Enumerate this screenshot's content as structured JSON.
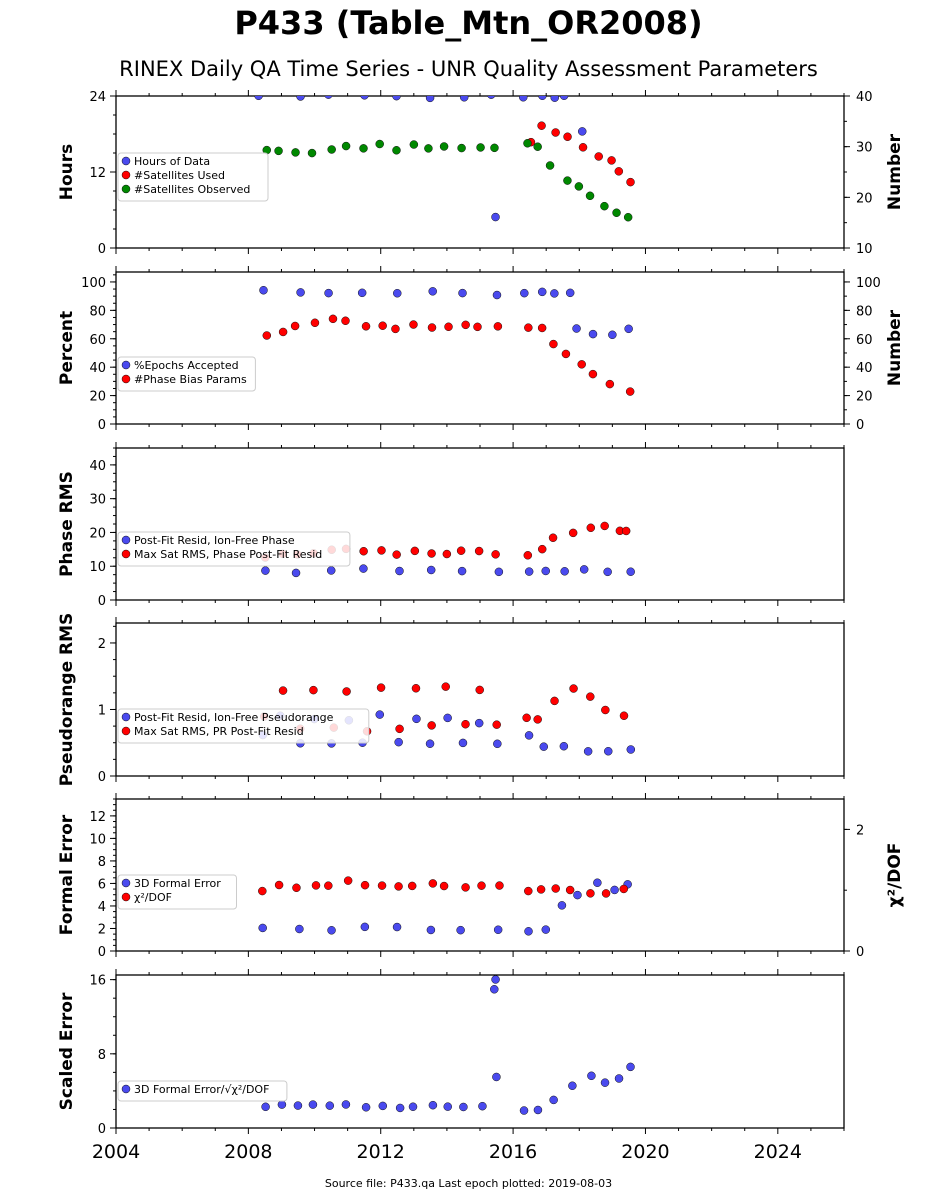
{
  "title": "P433 (Table_Mtn_OR2008)",
  "subtitle": "RINEX Daily QA Time Series - UNR Quality Assessment Parameters",
  "source_note": "Source file: P433.qa Last epoch plotted: 2019-08-03",
  "colors": {
    "blue": "#4a4aee",
    "red": "#ff0000",
    "green": "#008800",
    "edge": "#111111"
  },
  "chart_data": [
    {
      "type": "scatter",
      "ylabel": "Hours",
      "ylabel_right": "Number",
      "x_ticks": [
        "2004",
        "2008",
        "2012",
        "2016",
        "2020",
        "2024"
      ],
      "xlim": [
        2004,
        2026
      ],
      "ylim": [
        0,
        24
      ],
      "yticks": [
        "0",
        "12",
        "24"
      ],
      "ylim_right": [
        10,
        40
      ],
      "yticks_right": [
        "10",
        "20",
        "30",
        "40"
      ],
      "legend": [
        "Hours of Data",
        "#Satellites Used",
        "#Satellites Observed"
      ],
      "legend_loc": "lower-left",
      "series": [
        {
          "name": "Hours of Data",
          "color": "blue",
          "axis": "left",
          "x": [
            2008.4,
            2009.5,
            2010.5,
            2011.5,
            2012.5,
            2013.5,
            2014.5,
            2015.4,
            2015.5,
            2016.3,
            2016.8,
            2017.2,
            2017.6,
            2018.0
          ],
          "y": [
            24,
            24,
            24,
            24,
            24,
            24,
            24,
            24,
            5.2,
            24,
            24,
            24,
            24,
            18.5
          ]
        },
        {
          "name": "#Satellites Used",
          "color": "red",
          "axis": "right",
          "x": [
            2016.5,
            2016.9,
            2017.3,
            2017.7,
            2018.1,
            2018.5,
            2018.9,
            2019.2,
            2019.5
          ],
          "y": [
            31,
            34,
            33,
            32,
            30,
            28,
            27,
            25,
            23
          ]
        },
        {
          "name": "#Satellites Observed",
          "color": "green",
          "axis": "right",
          "x": [
            2008.5,
            2009.0,
            2009.5,
            2010.0,
            2010.5,
            2011.0,
            2011.5,
            2012.0,
            2012.5,
            2013.0,
            2013.5,
            2014.0,
            2014.5,
            2015.0,
            2015.5,
            2016.4,
            2016.8,
            2017.2,
            2017.6,
            2018.0,
            2018.4,
            2018.8,
            2019.2,
            2019.5
          ],
          "y": [
            29.5,
            29,
            28.8,
            28.5,
            29.5,
            30.5,
            30,
            30.5,
            29.5,
            30.5,
            30,
            30,
            29.5,
            30,
            30,
            30.5,
            30,
            26,
            23,
            22,
            20,
            18.5,
            17,
            16
          ]
        }
      ]
    },
    {
      "type": "scatter",
      "ylabel": "Percent",
      "ylabel_right": "Number",
      "xlim": [
        2004,
        2026
      ],
      "ylim": [
        0,
        107
      ],
      "yticks": [
        "0",
        "20",
        "40",
        "60",
        "80",
        "100"
      ],
      "ylim_right": [
        0,
        107
      ],
      "yticks_right": [
        "0",
        "20",
        "40",
        "60",
        "80",
        "100"
      ],
      "legend": [
        "%Epochs Accepted",
        "#Phase Bias Params"
      ],
      "legend_loc": "lower-left",
      "series": [
        {
          "name": "%Epochs Accepted",
          "color": "blue",
          "axis": "left",
          "x": [
            2008.5,
            2009.5,
            2010.5,
            2011.5,
            2012.5,
            2013.5,
            2014.5,
            2015.5,
            2016.3,
            2016.8,
            2017.3,
            2017.7,
            2018.0,
            2018.5,
            2019.0,
            2019.5
          ],
          "y": [
            93,
            92,
            91,
            92,
            92,
            93,
            92,
            92,
            93,
            92,
            92,
            93,
            68,
            64,
            64,
            66
          ]
        },
        {
          "name": "#Phase Bias Params",
          "color": "red",
          "axis": "right",
          "x": [
            2008.5,
            2009.0,
            2009.5,
            2010.0,
            2010.5,
            2011.0,
            2011.5,
            2012.0,
            2012.5,
            2013.0,
            2013.5,
            2014.0,
            2014.5,
            2015.0,
            2015.5,
            2016.4,
            2016.8,
            2017.2,
            2017.6,
            2018.0,
            2018.5,
            2019.0,
            2019.5
          ],
          "y": [
            63,
            66,
            68,
            70,
            74,
            72,
            70,
            68,
            66,
            70,
            69,
            68,
            70,
            69,
            70,
            67,
            68,
            55,
            48,
            42,
            35,
            28,
            24
          ]
        }
      ]
    },
    {
      "type": "scatter",
      "ylabel": "Phase RMS",
      "xlim": [
        2004,
        2026
      ],
      "ylim": [
        0,
        45
      ],
      "yticks": [
        "0",
        "10",
        "20",
        "30",
        "40"
      ],
      "legend": [
        "Post-Fit Resid, Ion-Free Phase",
        "Max Sat RMS, Phase Post-Fit Resid"
      ],
      "legend_loc": "lower-left",
      "series": [
        {
          "name": "Post-Fit Resid, Ion-Free Phase",
          "color": "blue",
          "axis": "left",
          "x": [
            2008.5,
            2009.5,
            2010.5,
            2011.5,
            2012.5,
            2013.5,
            2014.5,
            2015.5,
            2016.4,
            2017.0,
            2017.6,
            2018.2,
            2018.8,
            2019.5
          ],
          "y": [
            8.5,
            8.5,
            8.8,
            8.8,
            8.6,
            8.5,
            8.5,
            8.6,
            8.7,
            8.6,
            8.7,
            8.5,
            8.6,
            8.8
          ]
        },
        {
          "name": "Max Sat RMS, Phase Post-Fit Resid",
          "color": "red",
          "axis": "left",
          "x": [
            2008.5,
            2009.0,
            2009.5,
            2010.0,
            2010.5,
            2011.0,
            2011.5,
            2012.0,
            2012.5,
            2013.0,
            2013.5,
            2014.0,
            2014.5,
            2015.0,
            2015.5,
            2016.4,
            2016.8,
            2017.2,
            2017.8,
            2018.3,
            2018.8,
            2019.2,
            2019.5
          ],
          "y": [
            13,
            14,
            13.5,
            14,
            14.5,
            15,
            15,
            14.5,
            14,
            14.5,
            14,
            14,
            14,
            14,
            14,
            13.5,
            15,
            18,
            20,
            21,
            22,
            20,
            21
          ]
        }
      ]
    },
    {
      "type": "scatter",
      "ylabel": "Pseudorange RMS",
      "xlim": [
        2004,
        2026
      ],
      "ylim": [
        0,
        2.3
      ],
      "yticks": [
        "0",
        "1",
        "2"
      ],
      "legend": [
        "Post-Fit Resid, Ion-Free Pseudorange",
        "Max Sat RMS, PR Post-Fit Resid"
      ],
      "legend_loc": "lower-left",
      "series": [
        {
          "name": "Post-Fit Resid, Ion-Free Pseudorange",
          "color": "blue",
          "axis": "left",
          "x": [
            2008.5,
            2009.0,
            2009.5,
            2010.0,
            2010.5,
            2011.0,
            2011.5,
            2012.0,
            2012.5,
            2013.0,
            2013.5,
            2014.0,
            2014.5,
            2015.0,
            2015.5,
            2016.4,
            2017.0,
            2017.6,
            2018.2,
            2018.8,
            2019.5
          ],
          "y": [
            0.6,
            0.9,
            0.5,
            0.85,
            0.5,
            0.85,
            0.5,
            0.9,
            0.5,
            0.85,
            0.5,
            0.9,
            0.5,
            0.8,
            0.5,
            0.6,
            0.45,
            0.42,
            0.4,
            0.4,
            0.42
          ]
        },
        {
          "name": "Max Sat RMS, PR Post-Fit Resid",
          "color": "red",
          "axis": "left",
          "x": [
            2008.5,
            2009.0,
            2009.5,
            2010.0,
            2010.5,
            2011.0,
            2011.5,
            2012.0,
            2012.5,
            2013.0,
            2013.5,
            2014.0,
            2014.5,
            2015.0,
            2015.5,
            2016.4,
            2016.8,
            2017.3,
            2017.8,
            2018.3,
            2018.8,
            2019.3
          ],
          "y": [
            0.9,
            1.3,
            0.7,
            1.3,
            0.7,
            1.3,
            0.7,
            1.35,
            0.7,
            1.3,
            0.75,
            1.35,
            0.75,
            1.3,
            0.8,
            0.9,
            0.85,
            1.1,
            1.3,
            1.2,
            1.0,
            0.9
          ]
        }
      ]
    },
    {
      "type": "scatter",
      "ylabel": "Formal Error",
      "ylabel_right": "χ²/DOF",
      "xlim": [
        2004,
        2026
      ],
      "ylim": [
        0,
        13.5
      ],
      "yticks": [
        "0",
        "2",
        "4",
        "6",
        "8",
        "10",
        "12"
      ],
      "ylim_right": [
        0,
        2.5
      ],
      "yticks_right": [
        "0",
        "2"
      ],
      "legend": [
        "3D Formal Error",
        "χ²/DOF"
      ],
      "legend_loc": "lower-left",
      "series": [
        {
          "name": "3D Formal Error",
          "color": "blue",
          "axis": "left",
          "x": [
            2008.5,
            2009.5,
            2010.5,
            2011.5,
            2012.5,
            2013.5,
            2014.5,
            2015.5,
            2016.4,
            2017.0,
            2017.5,
            2018.0,
            2018.5,
            2019.0,
            2019.5
          ],
          "y": [
            2.0,
            2.0,
            2.0,
            2.0,
            2.0,
            2.0,
            2.0,
            2.0,
            1.9,
            2.0,
            4.0,
            5.0,
            6.0,
            5.5,
            6.0
          ]
        },
        {
          "name": "χ²/DOF",
          "color": "red",
          "axis": "right",
          "x": [
            2008.5,
            2009.0,
            2009.5,
            2010.0,
            2010.5,
            2011.0,
            2011.5,
            2012.0,
            2012.5,
            2013.0,
            2013.5,
            2014.0,
            2014.5,
            2015.0,
            2015.5,
            2016.4,
            2016.8,
            2017.3,
            2017.8,
            2018.3,
            2018.8,
            2019.3
          ],
          "y": [
            1.0,
            1.1,
            1.05,
            1.1,
            1.1,
            1.15,
            1.1,
            1.1,
            1.05,
            1.1,
            1.1,
            1.1,
            1.05,
            1.1,
            1.1,
            1.0,
            1.0,
            1.05,
            1.0,
            0.95,
            0.95,
            1.0
          ]
        }
      ]
    },
    {
      "type": "scatter",
      "ylabel": "Scaled Error",
      "xlim": [
        2004,
        2026
      ],
      "ylim": [
        0,
        16.5
      ],
      "yticks": [
        "0",
        "8",
        "16"
      ],
      "legend": [
        "3D Formal Error/√χ²/DOF"
      ],
      "legend_loc": "lower-left",
      "series": [
        {
          "name": "3D Formal Error/√χ²/DOF",
          "color": "blue",
          "axis": "left",
          "x": [
            2008.5,
            2009.0,
            2009.5,
            2010.0,
            2010.5,
            2011.0,
            2011.5,
            2012.0,
            2012.5,
            2013.0,
            2013.5,
            2014.0,
            2014.5,
            2015.0,
            2015.4,
            2015.45,
            2015.5,
            2016.4,
            2016.8,
            2017.3,
            2017.8,
            2018.3,
            2018.8,
            2019.2,
            2019.5
          ],
          "y": [
            2.3,
            2.4,
            2.3,
            2.4,
            2.3,
            2.4,
            2.3,
            2.4,
            2.3,
            2.4,
            2.3,
            2.4,
            2.3,
            2.4,
            16.0,
            15.0,
            5.3,
            2.0,
            2.1,
            3.0,
            4.5,
            5.5,
            5.0,
            5.5,
            6.5
          ]
        }
      ]
    }
  ]
}
